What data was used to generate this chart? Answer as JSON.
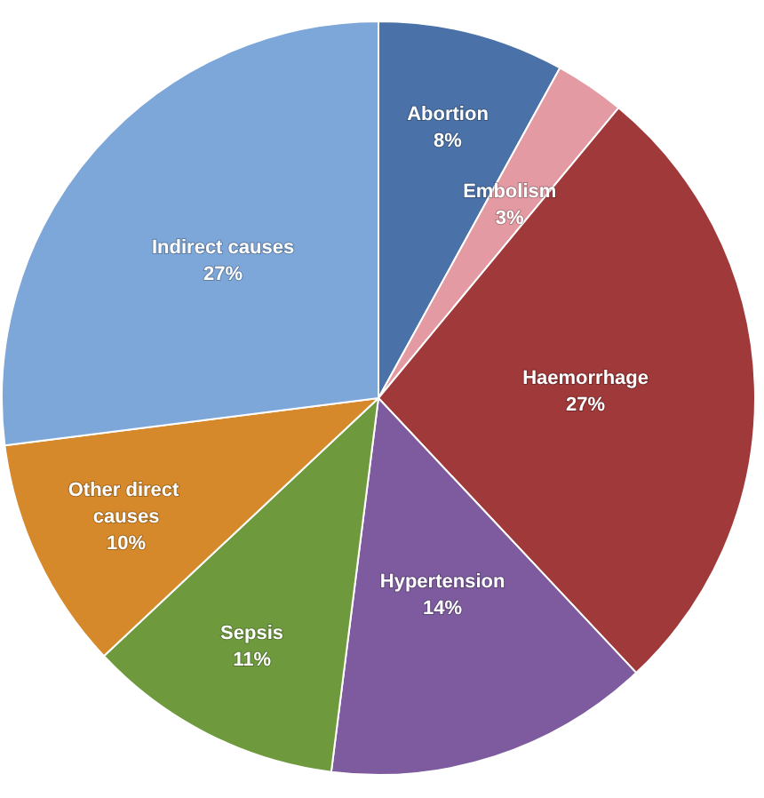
{
  "chart_data": {
    "type": "pie",
    "categories": [
      "Abortion",
      "Embolism",
      "Haemorrhage",
      "Hypertension",
      "Sepsis",
      "Other direct causes",
      "Indirect causes"
    ],
    "values": [
      8,
      3,
      27,
      14,
      11,
      10,
      27
    ],
    "value_labels": [
      "8%",
      "3%",
      "27%",
      "14%",
      "11%",
      "10%",
      "27%"
    ],
    "colors": [
      "#4a72a8",
      "#e39aa3",
      "#a0393a",
      "#7d5b9e",
      "#6e9a3d",
      "#d6892a",
      "#7ea7d9"
    ]
  }
}
